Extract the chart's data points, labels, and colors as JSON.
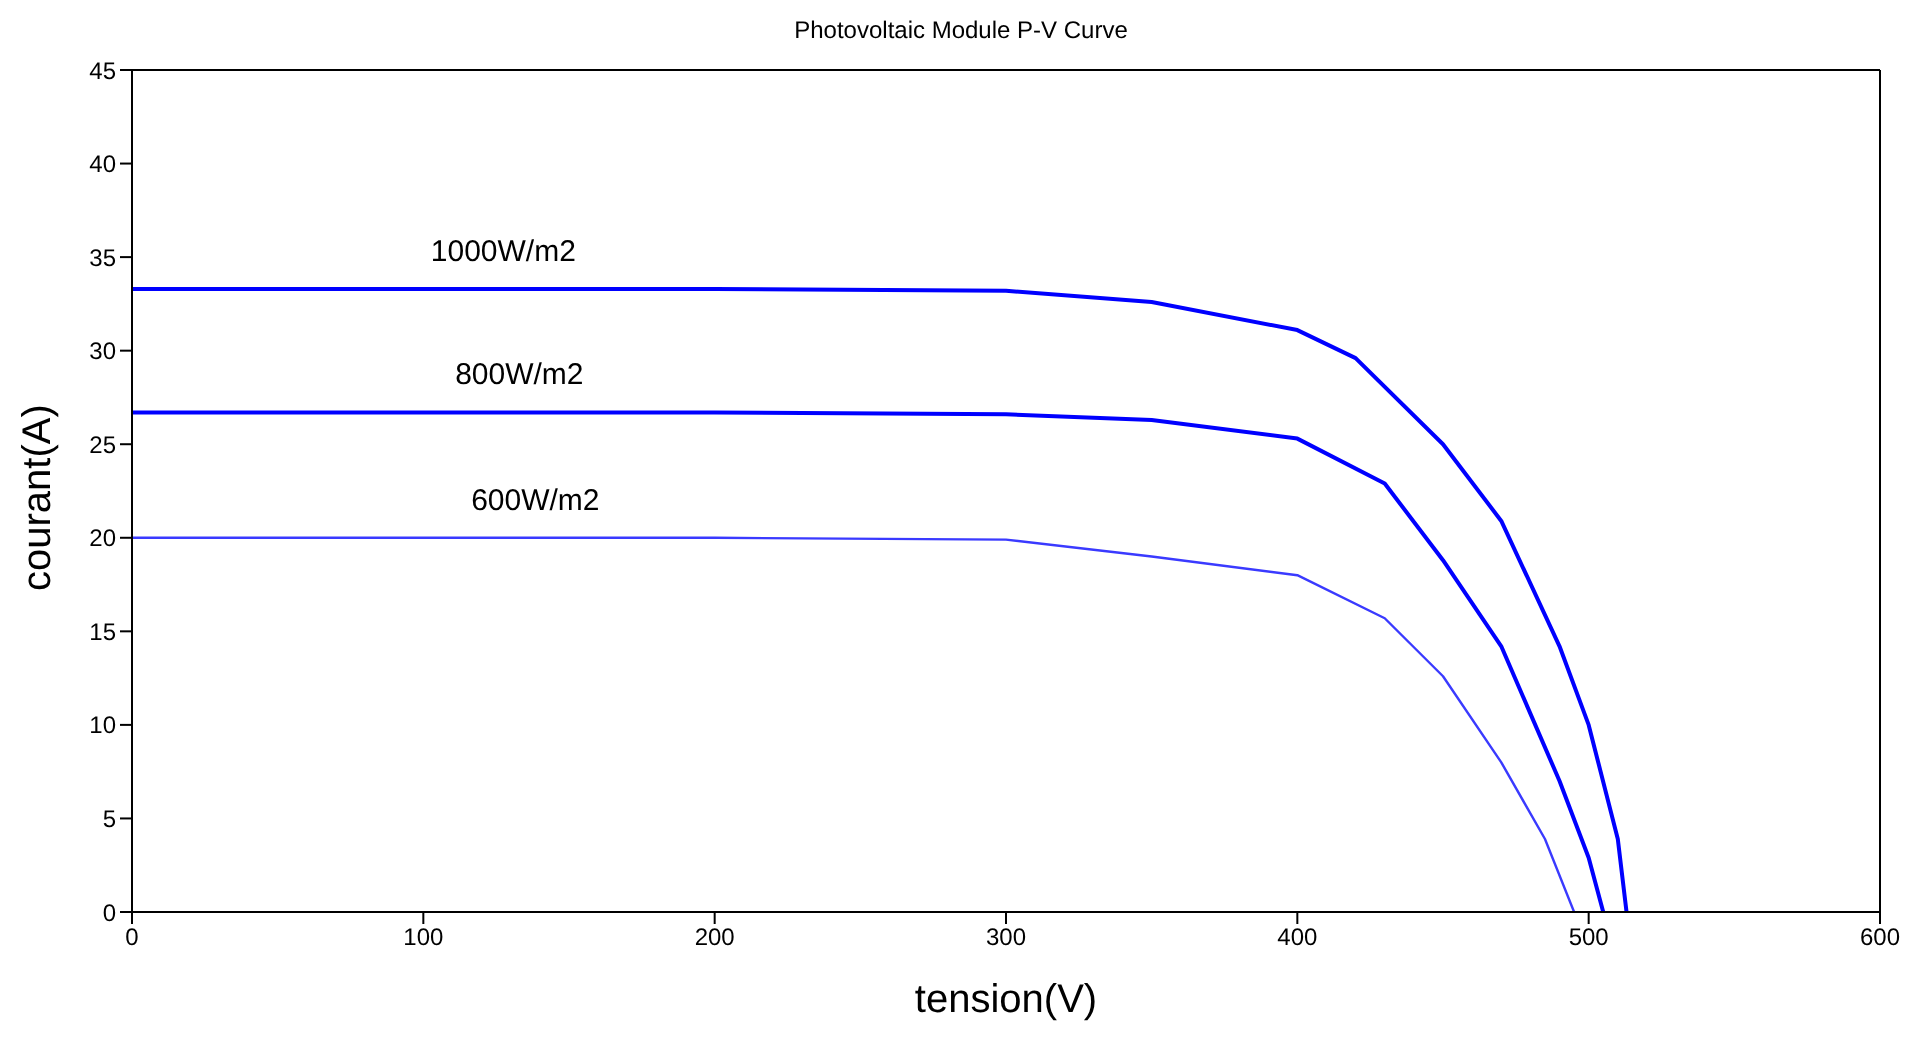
{
  "chart_data": {
    "type": "line",
    "title": "Photovoltaic Module P-V Curve",
    "xlabel": "tension(V)",
    "ylabel": "courant(A)",
    "xlim": [
      0,
      600
    ],
    "xticks": [
      0,
      100,
      200,
      300,
      400,
      500,
      600
    ],
    "ylim": [
      0,
      45
    ],
    "yticks": [
      0,
      5,
      10,
      15,
      20,
      25,
      30,
      35,
      40,
      45
    ],
    "grid": false,
    "legend": false,
    "marker": "none",
    "line_style": "solid",
    "series": [
      {
        "name": "1000W/m2",
        "color": "#0000ff",
        "x": [
          0,
          100,
          200,
          300,
          350,
          400,
          420,
          450,
          470,
          490,
          500,
          510,
          513
        ],
        "values": [
          33.3,
          33.3,
          33.3,
          33.2,
          32.6,
          31.1,
          29.6,
          25,
          20.9,
          14.2,
          10,
          3.9,
          0
        ]
      },
      {
        "name": "800W/m2",
        "color": "#0000ff",
        "x": [
          0,
          100,
          200,
          300,
          350,
          400,
          430,
          450,
          470,
          490,
          500,
          505
        ],
        "values": [
          26.7,
          26.7,
          26.7,
          26.6,
          26.3,
          25.3,
          22.9,
          18.8,
          14.2,
          7,
          2.9,
          0
        ]
      },
      {
        "name": "600W/m2",
        "color": "#3a3aff",
        "x": [
          0,
          100,
          200,
          300,
          350,
          400,
          430,
          450,
          470,
          485,
          495
        ],
        "values": [
          20,
          20,
          20,
          19.9,
          19,
          18,
          15.7,
          12.6,
          8,
          3.9,
          0
        ]
      }
    ]
  }
}
